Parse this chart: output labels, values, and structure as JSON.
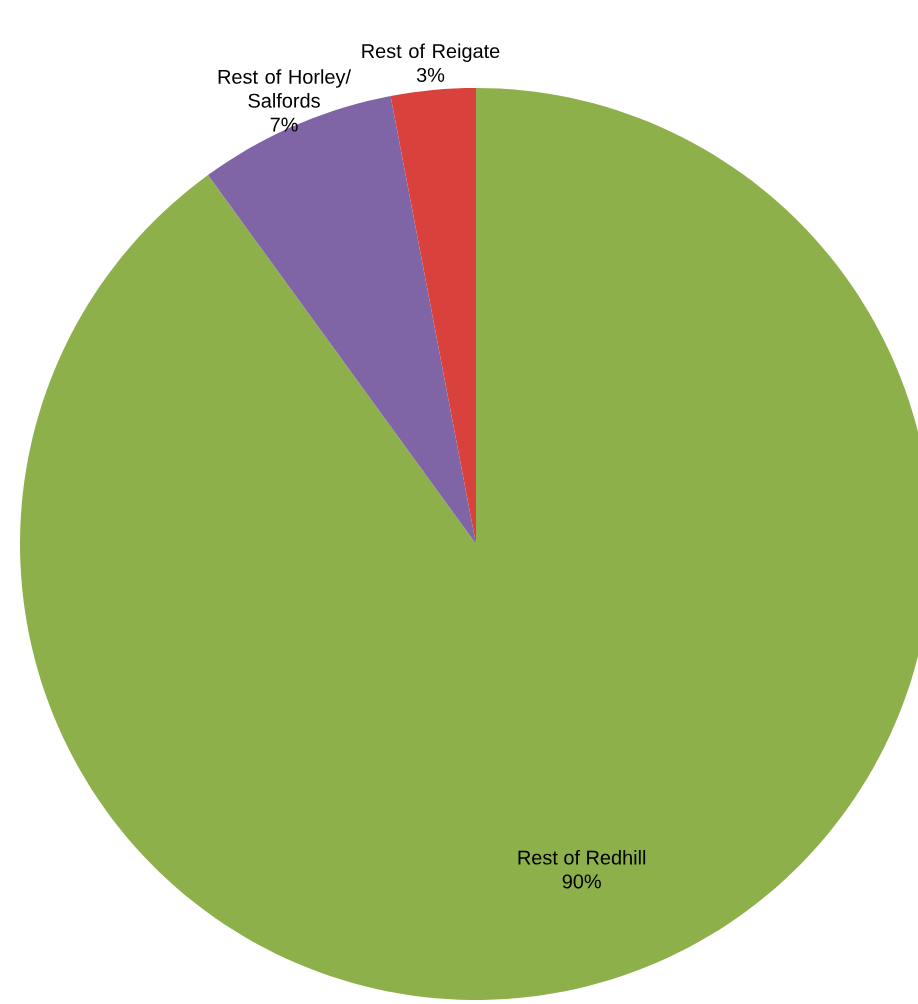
{
  "chart_data": {
    "type": "pie",
    "categories": [
      "Rest of Redhill",
      "Rest of Horley/ Salfords",
      "Rest of Reigate"
    ],
    "values": [
      90,
      7,
      3
    ],
    "value_labels": [
      "90%",
      "7%",
      "3%"
    ],
    "colors": [
      "#8db04a",
      "#7f64a6",
      "#d9413c"
    ]
  }
}
